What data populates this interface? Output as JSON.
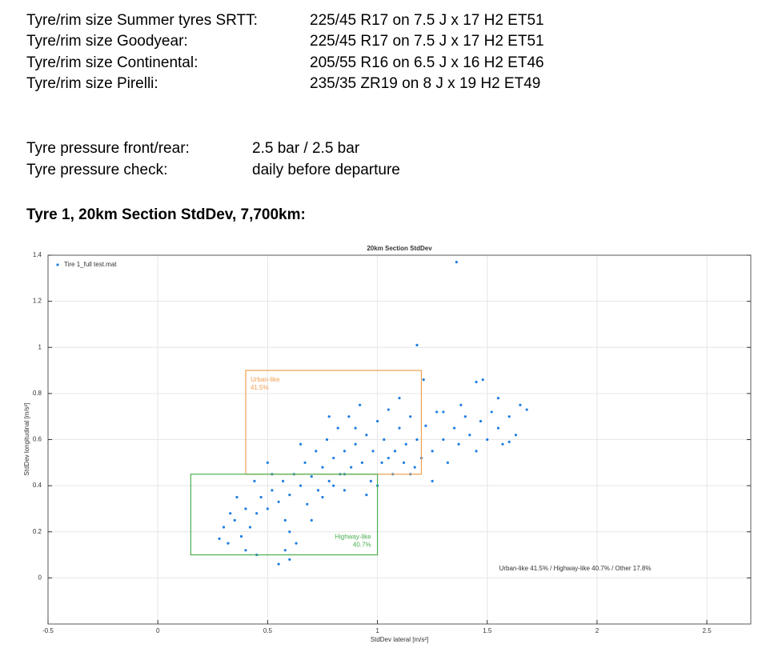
{
  "specs": [
    [
      "Tyre/rim size Summer tyres SRTT:",
      "225/45 R17 on 7.5 J x 17 H2 ET51"
    ],
    [
      "Tyre/rim size Goodyear:",
      "225/45 R17 on 7.5 J x 17 H2 ET51"
    ],
    [
      "Tyre/rim size Continental:",
      "205/55 R16 on 6.5 J x 16 H2 ET46"
    ],
    [
      "Tyre/rim size Pirelli:",
      "235/35 ZR19 on 8 J x 19 H2 ET49"
    ]
  ],
  "pressure": [
    [
      "Tyre pressure front/rear:",
      "2.5 bar / 2.5 bar"
    ],
    [
      "Tyre pressure check:",
      "daily before departure"
    ]
  ],
  "heading": "Tyre 1, 20km Section StdDev, 7,700km:",
  "chart_data": {
    "type": "scatter",
    "title": "20km Section StdDev",
    "xlabel": "StdDev lateral [m/s²]",
    "ylabel": "StdDev longitudinal [m/s²]",
    "xlim": [
      -0.5,
      2.7
    ],
    "ylim": [
      -0.2,
      1.4
    ],
    "xticks": [
      -0.5,
      0,
      0.5,
      1,
      1.5,
      2,
      2.5
    ],
    "yticks": [
      0,
      0.2,
      0.4,
      0.6,
      0.8,
      1,
      1.2,
      1.4
    ],
    "grid": true,
    "legend": "upper-left",
    "x": [
      0.3,
      0.32,
      0.35,
      0.38,
      0.4,
      0.42,
      0.45,
      0.47,
      0.5,
      0.52,
      0.55,
      0.57,
      0.58,
      0.6,
      0.6,
      0.62,
      0.63,
      0.65,
      0.67,
      0.68,
      0.7,
      0.72,
      0.73,
      0.75,
      0.77,
      0.78,
      0.8,
      0.82,
      0.83,
      0.85,
      0.87,
      0.88,
      0.9,
      0.92,
      0.93,
      0.95,
      0.97,
      0.98,
      1.0,
      1.02,
      1.03,
      1.05,
      1.07,
      1.08,
      1.1,
      1.12,
      1.13,
      1.15,
      1.17,
      1.18,
      1.2,
      1.22,
      1.25,
      1.27,
      1.3,
      1.32,
      1.35,
      1.37,
      1.4,
      1.42,
      1.45,
      1.47,
      1.5,
      1.52,
      1.55,
      1.57,
      1.6,
      1.63,
      1.65,
      1.68,
      0.28,
      0.33,
      0.45,
      0.55,
      0.58,
      0.36,
      0.44,
      0.5,
      0.7,
      0.85,
      1.0,
      1.1,
      0.95,
      1.25,
      1.45,
      1.48,
      1.36,
      1.18,
      1.21,
      0.9,
      0.78,
      0.65,
      0.6,
      0.52,
      0.4,
      0.75,
      0.8,
      0.85,
      1.05,
      1.15,
      1.3,
      1.38,
      1.55,
      1.6
    ],
    "series": [
      {
        "name": "Tire 1_full test.mat",
        "color": "#1f7fe0",
        "values": [
          0.22,
          0.15,
          0.25,
          0.18,
          0.3,
          0.22,
          0.28,
          0.35,
          0.3,
          0.38,
          0.33,
          0.42,
          0.25,
          0.36,
          0.08,
          0.45,
          0.15,
          0.4,
          0.5,
          0.32,
          0.44,
          0.55,
          0.38,
          0.48,
          0.6,
          0.42,
          0.52,
          0.65,
          0.45,
          0.55,
          0.7,
          0.48,
          0.58,
          0.75,
          0.5,
          0.62,
          0.42,
          0.55,
          0.68,
          0.5,
          0.6,
          0.73,
          0.45,
          0.55,
          0.65,
          0.5,
          0.58,
          0.7,
          0.48,
          0.6,
          0.52,
          0.66,
          0.55,
          0.72,
          0.6,
          0.5,
          0.65,
          0.58,
          0.7,
          0.62,
          0.55,
          0.68,
          0.6,
          0.72,
          0.65,
          0.58,
          0.7,
          0.62,
          0.75,
          0.73,
          0.17,
          0.28,
          0.1,
          0.06,
          0.12,
          0.35,
          0.42,
          0.5,
          0.25,
          0.38,
          0.4,
          0.78,
          0.36,
          0.42,
          0.85,
          0.86,
          1.37,
          1.01,
          0.86,
          0.65,
          0.7,
          0.58,
          0.2,
          0.45,
          0.12,
          0.35,
          0.4,
          0.45,
          0.52,
          0.45,
          0.72,
          0.75,
          0.78,
          0.59
        ]
      }
    ],
    "regions": [
      {
        "label": "Urban-like",
        "share": "41.5%",
        "color": "#f0a050",
        "xlim": [
          0.4,
          1.2
        ],
        "ylim": [
          0.45,
          0.9
        ],
        "corner": "top-left"
      },
      {
        "label": "Highway-like",
        "share": "40.7%",
        "color": "#4caf50",
        "xlim": [
          0.15,
          1.0
        ],
        "ylim": [
          0.1,
          0.45
        ],
        "corner": "bottom-right"
      }
    ],
    "annotation": "Urban-like 41.5%  / Highway-like 40.7%  / Other 17.8%"
  }
}
